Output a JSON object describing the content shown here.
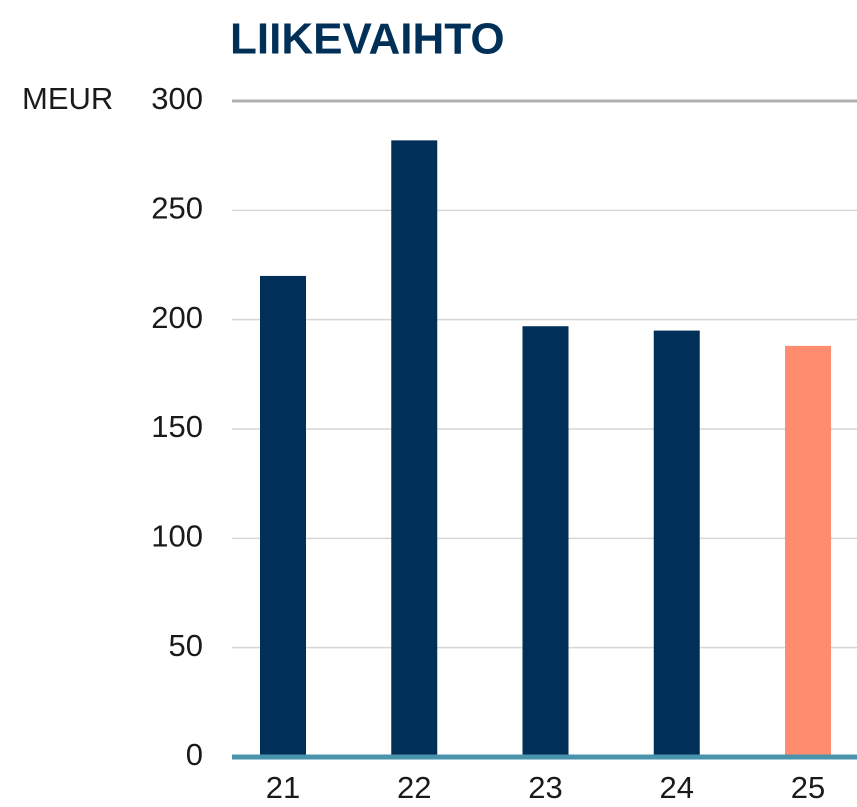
{
  "chart_data": {
    "type": "bar",
    "title": "LIIKEVAIHTO",
    "y_label": "MEUR",
    "categories": [
      "21",
      "22",
      "23",
      "24",
      "25"
    ],
    "values": [
      220,
      282,
      197,
      195,
      188
    ],
    "colors": [
      "#003057",
      "#003057",
      "#003057",
      "#003057",
      "#ff8c6e"
    ],
    "ylim": [
      0,
      300
    ],
    "yticks": [
      0,
      50,
      100,
      150,
      200,
      250,
      300
    ],
    "grid": true
  }
}
